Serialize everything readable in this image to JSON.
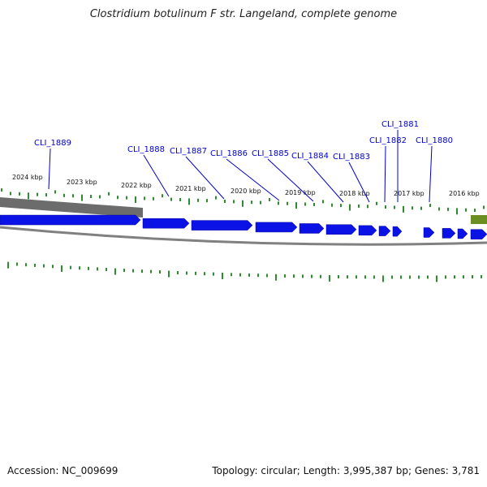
{
  "header": {
    "title": "Clostridium botulinum F str. Langeland, complete genome"
  },
  "footer": {
    "accession": "Accession: NC_009699",
    "summary": "Topology: circular; Length: 3,995,387 bp; Genes: 3,781"
  },
  "colors": {
    "gene_fill": "#0b12e6",
    "gene_label": "#0000cc",
    "tick": "#2e8b2e",
    "backbone": "#707070",
    "highlight": "#6b8e23"
  },
  "kbp_labels": [
    "2024 kbp",
    "2023 kbp",
    "2022 kbp",
    "2021 kbp",
    "2020 kbp",
    "2019 kbp",
    "2018 kbp",
    "2017 kbp",
    "2016 kbp"
  ],
  "gene_labels": [
    "CLI_1889",
    "CLI_1888",
    "CLI_1887",
    "CLI_1886",
    "CLI_1885",
    "CLI_1884",
    "CLI_1883",
    "CLI_1882",
    "CLI_1881",
    "CLI_1880"
  ]
}
